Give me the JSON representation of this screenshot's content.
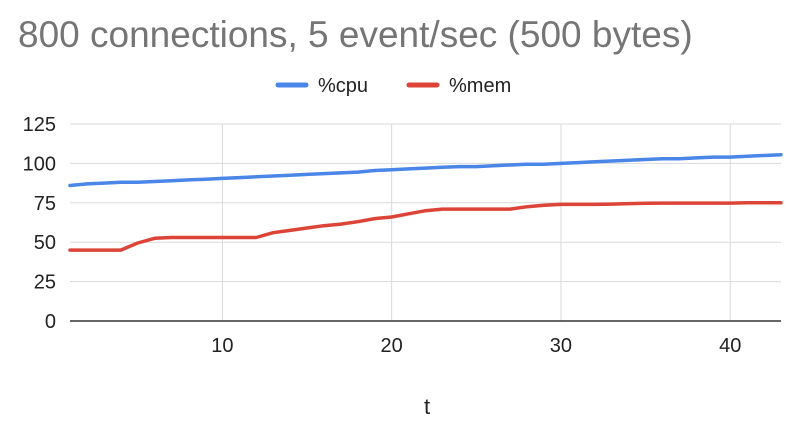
{
  "chart_data": {
    "type": "line",
    "title": "800 connections, 5 event/sec (500 bytes)",
    "xlabel": "t",
    "ylabel": "",
    "xlim": [
      1,
      43
    ],
    "ylim": [
      0,
      125
    ],
    "xticks": [
      10,
      20,
      30,
      40
    ],
    "yticks": [
      0,
      25,
      50,
      75,
      100,
      125
    ],
    "grid": true,
    "legend": "top",
    "x": [
      1,
      2,
      3,
      4,
      5,
      6,
      7,
      8,
      9,
      10,
      11,
      12,
      13,
      14,
      15,
      16,
      17,
      18,
      19,
      20,
      21,
      22,
      23,
      24,
      25,
      26,
      27,
      28,
      29,
      30,
      31,
      32,
      33,
      34,
      35,
      36,
      37,
      38,
      39,
      40,
      41,
      42,
      43
    ],
    "series": [
      {
        "name": "%cpu",
        "color": "#4a86e8",
        "values": [
          86,
          87,
          87.5,
          88,
          88,
          88.5,
          89,
          89.5,
          90,
          90.5,
          91,
          91.5,
          92,
          92.5,
          93,
          93.5,
          94,
          94.5,
          95.5,
          96,
          96.5,
          97,
          97.5,
          98,
          98,
          98.5,
          99,
          99.5,
          99.5,
          100,
          100.5,
          101,
          101.5,
          102,
          102.5,
          103,
          103,
          103.5,
          104,
          104,
          104.5,
          105,
          105.5
        ]
      },
      {
        "name": "%mem",
        "color": "#db4437",
        "values": [
          45,
          45,
          45,
          45,
          49.5,
          52.5,
          53,
          53,
          53,
          53,
          53,
          53,
          56,
          57.5,
          59,
          60.5,
          61.5,
          63,
          65,
          66,
          68,
          70,
          71,
          71,
          71,
          71,
          71,
          72.5,
          73.5,
          74,
          74,
          74,
          74.2,
          74.5,
          74.7,
          74.8,
          74.8,
          74.8,
          74.8,
          74.8,
          75,
          75,
          75
        ]
      }
    ]
  }
}
